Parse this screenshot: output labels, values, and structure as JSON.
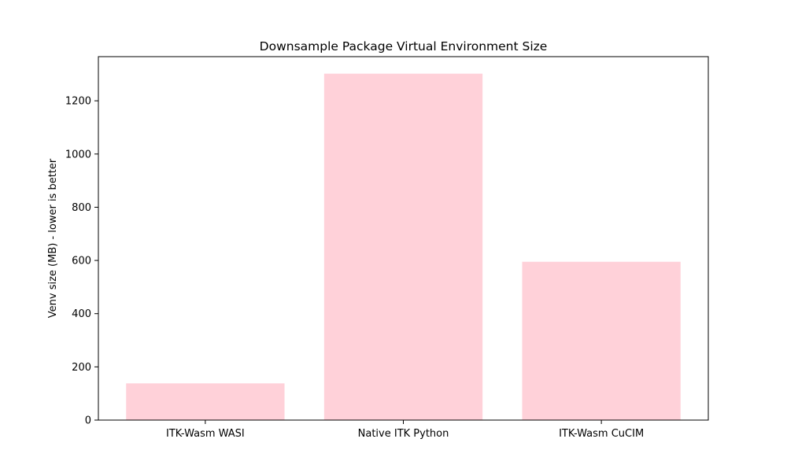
{
  "chart_data": {
    "type": "bar",
    "title": "Downsample Package Virtual Environment Size",
    "xlabel": "",
    "ylabel": "Venv size (MB) - lower is better",
    "categories": [
      "ITK-Wasm WASI",
      "Native ITK Python",
      "ITK-Wasm CuCIM"
    ],
    "values": [
      138,
      1302,
      595
    ],
    "ylim": [
      0,
      1366
    ],
    "yticks": [
      0,
      200,
      400,
      600,
      800,
      1000,
      1200
    ],
    "bar_color": "#ffd1d9",
    "grid": false,
    "legend": "none"
  }
}
